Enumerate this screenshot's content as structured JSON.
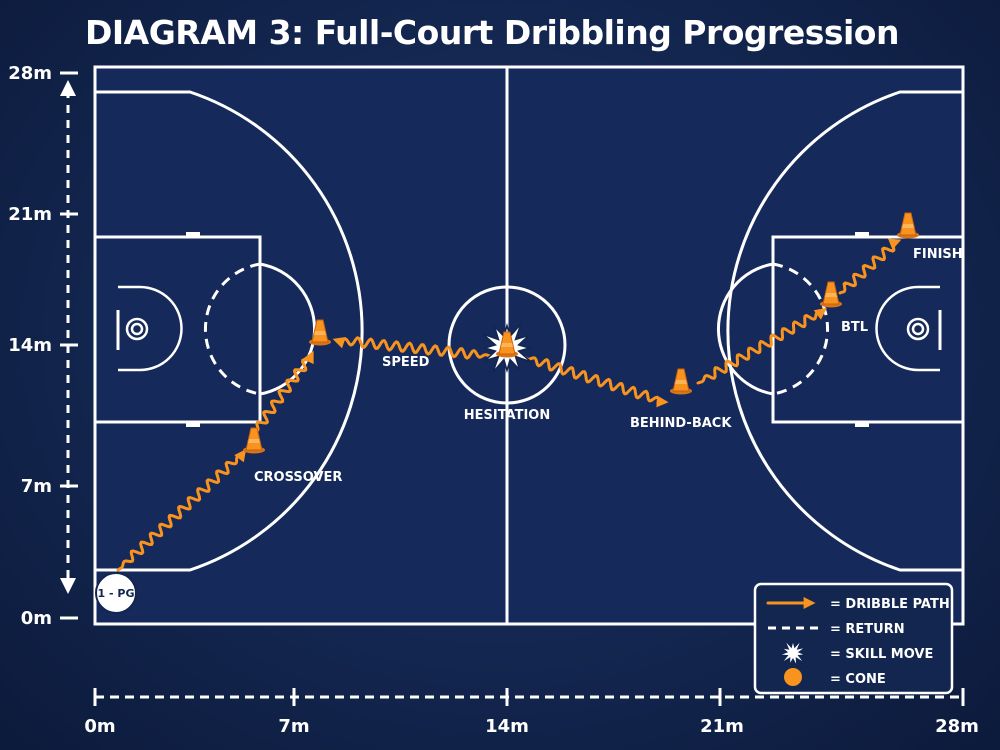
{
  "title": "DIAGRAM 3: Full-Court Dribbling Progression",
  "y_axis": {
    "ticks": [
      {
        "value": 28,
        "label": "28m"
      },
      {
        "value": 21,
        "label": "21m"
      },
      {
        "value": 14,
        "label": "14m"
      },
      {
        "value": 7,
        "label": "7m"
      },
      {
        "value": 0,
        "label": "0m"
      }
    ]
  },
  "x_axis": {
    "ticks": [
      {
        "value": 0,
        "label": "0m"
      },
      {
        "value": 7,
        "label": "7m"
      },
      {
        "value": 14,
        "label": "14m"
      },
      {
        "value": 21,
        "label": "21m"
      },
      {
        "value": 28,
        "label": "28m"
      }
    ]
  },
  "player": {
    "label": "1 - PG"
  },
  "moves": {
    "crossover": "CROSSOVER",
    "speed": "SPEED",
    "hesitation": "HESITATION",
    "behind_back": "BEHIND-BACK",
    "btl": "BTL",
    "finish": "FINISH"
  },
  "legend": {
    "dribble": "= DRIBBLE PATH",
    "return": "= RETURN",
    "skill": "= SKILL MOVE",
    "cone": "= CONE"
  },
  "colors": {
    "path": "#f7931e",
    "court": "#13264f",
    "lines": "#ffffff"
  }
}
